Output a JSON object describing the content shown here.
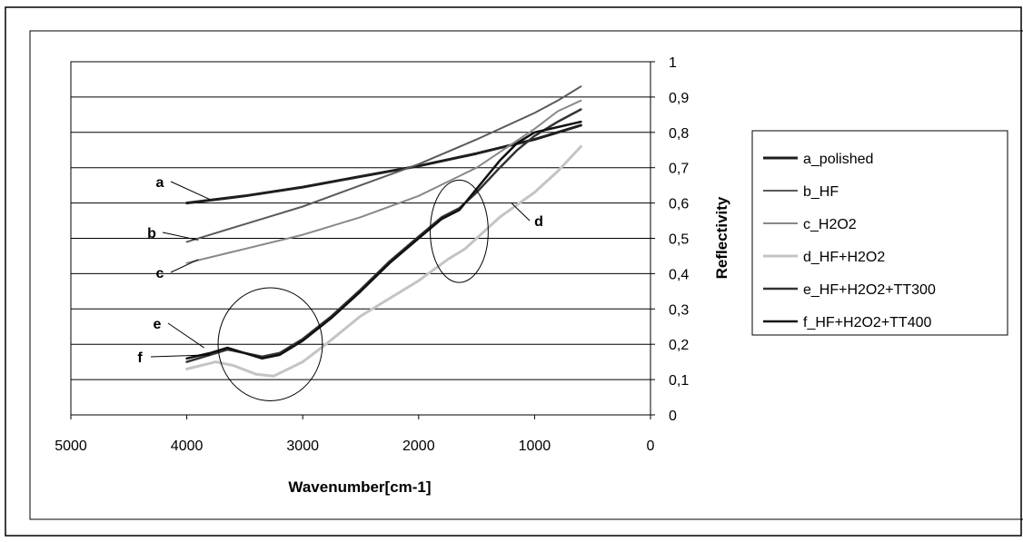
{
  "chart_data": {
    "type": "line",
    "title": "",
    "xlabel": "Wavenumber[cm-1]",
    "ylabel": "Reflectivity",
    "xlim": [
      5000,
      0
    ],
    "ylim": [
      0,
      1
    ],
    "x_reversed": true,
    "grid": "horizontal",
    "legend_position": "right",
    "x_ticks": [
      5000,
      4000,
      3000,
      2000,
      1000,
      0
    ],
    "x_tick_labels": [
      "5000",
      "4000",
      "3000",
      "2000",
      "1000",
      "0"
    ],
    "y_ticks": [
      0,
      0.1,
      0.2,
      0.3,
      0.4,
      0.5,
      0.6,
      0.7,
      0.8,
      0.9,
      1
    ],
    "y_tick_labels": [
      "0",
      "0,1",
      "0,2",
      "0,3",
      "0,4",
      "0,5",
      "0,6",
      "0,7",
      "0,8",
      "0,9",
      "1"
    ],
    "series": [
      {
        "name": "a_polished",
        "label": "a",
        "color": "#1e1e1e",
        "stroke": 3,
        "points": [
          [
            4000,
            0.6
          ],
          [
            3500,
            0.62
          ],
          [
            3000,
            0.645
          ],
          [
            2500,
            0.675
          ],
          [
            2000,
            0.705
          ],
          [
            1500,
            0.74
          ],
          [
            1000,
            0.78
          ],
          [
            800,
            0.8
          ],
          [
            600,
            0.82
          ]
        ]
      },
      {
        "name": "b_HF",
        "label": "b",
        "color": "#5a5a5a",
        "stroke": 2,
        "points": [
          [
            4000,
            0.49
          ],
          [
            3500,
            0.54
          ],
          [
            3000,
            0.59
          ],
          [
            2500,
            0.65
          ],
          [
            2000,
            0.71
          ],
          [
            1500,
            0.78
          ],
          [
            1000,
            0.855
          ],
          [
            800,
            0.89
          ],
          [
            600,
            0.93
          ]
        ]
      },
      {
        "name": "c_H2O2",
        "label": "c",
        "color": "#888888",
        "stroke": 2,
        "points": [
          [
            4000,
            0.43
          ],
          [
            3500,
            0.47
          ],
          [
            3000,
            0.51
          ],
          [
            2500,
            0.56
          ],
          [
            2000,
            0.62
          ],
          [
            1500,
            0.7
          ],
          [
            1000,
            0.81
          ],
          [
            800,
            0.86
          ],
          [
            600,
            0.89
          ]
        ]
      },
      {
        "name": "d_HF+H2O2",
        "label": "d",
        "color": "#c4c4c4",
        "stroke": 3,
        "points": [
          [
            4000,
            0.13
          ],
          [
            3750,
            0.15
          ],
          [
            3600,
            0.14
          ],
          [
            3400,
            0.115
          ],
          [
            3250,
            0.11
          ],
          [
            3000,
            0.15
          ],
          [
            2800,
            0.2
          ],
          [
            2500,
            0.28
          ],
          [
            2000,
            0.38
          ],
          [
            1750,
            0.44
          ],
          [
            1600,
            0.47
          ],
          [
            1500,
            0.5
          ],
          [
            1300,
            0.56
          ],
          [
            1000,
            0.63
          ],
          [
            800,
            0.69
          ],
          [
            600,
            0.76
          ]
        ]
      },
      {
        "name": "e_HF+H2O2+TT300",
        "label": "e",
        "color": "#333333",
        "stroke": 2.5,
        "points": [
          [
            4000,
            0.15
          ],
          [
            3800,
            0.17
          ],
          [
            3650,
            0.185
          ],
          [
            3500,
            0.175
          ],
          [
            3350,
            0.165
          ],
          [
            3200,
            0.175
          ],
          [
            3000,
            0.215
          ],
          [
            2750,
            0.28
          ],
          [
            2500,
            0.355
          ],
          [
            2250,
            0.435
          ],
          [
            2000,
            0.505
          ],
          [
            1800,
            0.56
          ],
          [
            1650,
            0.585
          ],
          [
            1500,
            0.63
          ],
          [
            1300,
            0.7
          ],
          [
            1150,
            0.75
          ],
          [
            1000,
            0.79
          ],
          [
            800,
            0.83
          ],
          [
            600,
            0.865
          ]
        ]
      },
      {
        "name": "f_HF+H2O2+TT400",
        "label": "f",
        "color": "#111111",
        "stroke": 2.5,
        "points": [
          [
            4000,
            0.16
          ],
          [
            3800,
            0.175
          ],
          [
            3650,
            0.19
          ],
          [
            3500,
            0.175
          ],
          [
            3350,
            0.16
          ],
          [
            3200,
            0.17
          ],
          [
            3000,
            0.21
          ],
          [
            2750,
            0.275
          ],
          [
            2500,
            0.35
          ],
          [
            2250,
            0.43
          ],
          [
            2000,
            0.5
          ],
          [
            1800,
            0.555
          ],
          [
            1650,
            0.58
          ],
          [
            1500,
            0.64
          ],
          [
            1300,
            0.72
          ],
          [
            1150,
            0.77
          ],
          [
            1000,
            0.8
          ],
          [
            800,
            0.815
          ],
          [
            600,
            0.83
          ]
        ]
      }
    ],
    "annotations": [
      {
        "text": "a",
        "series": "a_polished",
        "target": [
          3800,
          0.61
        ]
      },
      {
        "text": "b",
        "series": "b_HF",
        "target": [
          3900,
          0.495
        ]
      },
      {
        "text": "c",
        "series": "c_H2O2",
        "target": [
          3900,
          0.44
        ]
      },
      {
        "text": "d",
        "series": "d_HF+H2O2",
        "target": [
          1200,
          0.6
        ]
      },
      {
        "text": "e",
        "series": "e_HF+H2O2+TT300",
        "target": [
          3850,
          0.19
        ]
      },
      {
        "text": "f",
        "series": "f_HF+H2O2+TT400",
        "target": [
          3800,
          0.17
        ]
      }
    ],
    "highlight_ellipses": [
      {
        "center": [
          3280,
          0.2
        ],
        "rx_units": 450,
        "ry_units": 0.16
      },
      {
        "center": [
          1650,
          0.52
        ],
        "rx_units": 250,
        "ry_units": 0.145
      }
    ]
  }
}
